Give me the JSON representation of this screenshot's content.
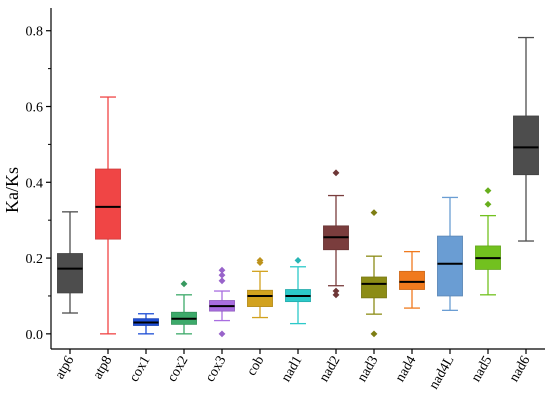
{
  "chart_data": {
    "type": "box",
    "title": "",
    "xlabel": "",
    "ylabel": "Ka/Ks",
    "ylim": [
      -0.04,
      0.86
    ],
    "yticks": [
      0.0,
      0.2,
      0.4,
      0.6,
      0.8
    ],
    "ytick_labels": [
      "0.0",
      "0.2",
      "0.4",
      "0.6",
      "0.8"
    ],
    "grid": false,
    "legend": "none",
    "categories": [
      "atp6",
      "atp8",
      "cox1",
      "cox2",
      "cox3",
      "cob",
      "nad1",
      "nad2",
      "nad3",
      "nad4",
      "nad4L",
      "nad5",
      "nad6"
    ],
    "series": [
      {
        "category": "atp6",
        "whisker_low": 0.055,
        "q1": 0.108,
        "median": 0.172,
        "q3": 0.212,
        "whisker_high": 0.322,
        "outliers": [],
        "color": "#4d4d4d",
        "median_color": "#000000"
      },
      {
        "category": "atp8",
        "whisker_low": 0.0,
        "q1": 0.25,
        "median": 0.335,
        "q3": 0.435,
        "whisker_high": 0.625,
        "outliers": [],
        "color": "#f04545",
        "median_color": "#000000"
      },
      {
        "category": "cox1",
        "whisker_low": 0.0,
        "q1": 0.022,
        "median": 0.03,
        "q3": 0.04,
        "whisker_high": 0.053,
        "outliers": [],
        "color": "#1f4fd6",
        "median_color": "#000000"
      },
      {
        "category": "cox2",
        "whisker_low": 0.0,
        "q1": 0.025,
        "median": 0.04,
        "q3": 0.057,
        "whisker_high": 0.103,
        "outliers": [
          0.132
        ],
        "color": "#3daa6a",
        "median_color": "#000000"
      },
      {
        "category": "cox3",
        "whisker_low": 0.035,
        "q1": 0.06,
        "median": 0.073,
        "q3": 0.088,
        "whisker_high": 0.113,
        "outliers": [
          0.0,
          0.14,
          0.155,
          0.168
        ],
        "color": "#a96ee0",
        "median_color": "#000000"
      },
      {
        "category": "cob",
        "whisker_low": 0.043,
        "q1": 0.072,
        "median": 0.1,
        "q3": 0.115,
        "whisker_high": 0.165,
        "outliers": [
          0.188,
          0.194
        ],
        "color": "#d2a21e",
        "median_color": "#000000"
      },
      {
        "category": "nad1",
        "whisker_low": 0.027,
        "q1": 0.085,
        "median": 0.1,
        "q3": 0.117,
        "whisker_high": 0.177,
        "outliers": [
          0.194
        ],
        "color": "#2cc9c9",
        "median_color": "#000000"
      },
      {
        "category": "nad2",
        "whisker_low": 0.127,
        "q1": 0.222,
        "median": 0.255,
        "q3": 0.285,
        "whisker_high": 0.365,
        "outliers": [
          0.103,
          0.113,
          0.425
        ],
        "color": "#7a3d3d",
        "median_color": "#000000"
      },
      {
        "category": "nad3",
        "whisker_low": 0.052,
        "q1": 0.095,
        "median": 0.132,
        "q3": 0.15,
        "whisker_high": 0.205,
        "outliers": [
          0.0,
          0.32
        ],
        "color": "#8c8c16",
        "median_color": "#000000"
      },
      {
        "category": "nad4",
        "whisker_low": 0.068,
        "q1": 0.117,
        "median": 0.137,
        "q3": 0.165,
        "whisker_high": 0.217,
        "outliers": [],
        "color": "#f07a1e",
        "median_color": "#000000"
      },
      {
        "category": "nad4L",
        "whisker_low": 0.062,
        "q1": 0.1,
        "median": 0.185,
        "q3": 0.258,
        "whisker_high": 0.36,
        "outliers": [],
        "color": "#6a9dd3",
        "median_color": "#000000"
      },
      {
        "category": "nad5",
        "whisker_low": 0.103,
        "q1": 0.17,
        "median": 0.2,
        "q3": 0.232,
        "whisker_high": 0.312,
        "outliers": [
          0.342,
          0.378
        ],
        "color": "#72c11f",
        "median_color": "#000000"
      },
      {
        "category": "nad6",
        "whisker_low": 0.245,
        "q1": 0.42,
        "median": 0.492,
        "q3": 0.575,
        "whisker_high": 0.782,
        "outliers": [],
        "color": "#4d4d4d",
        "median_color": "#000000"
      }
    ]
  }
}
